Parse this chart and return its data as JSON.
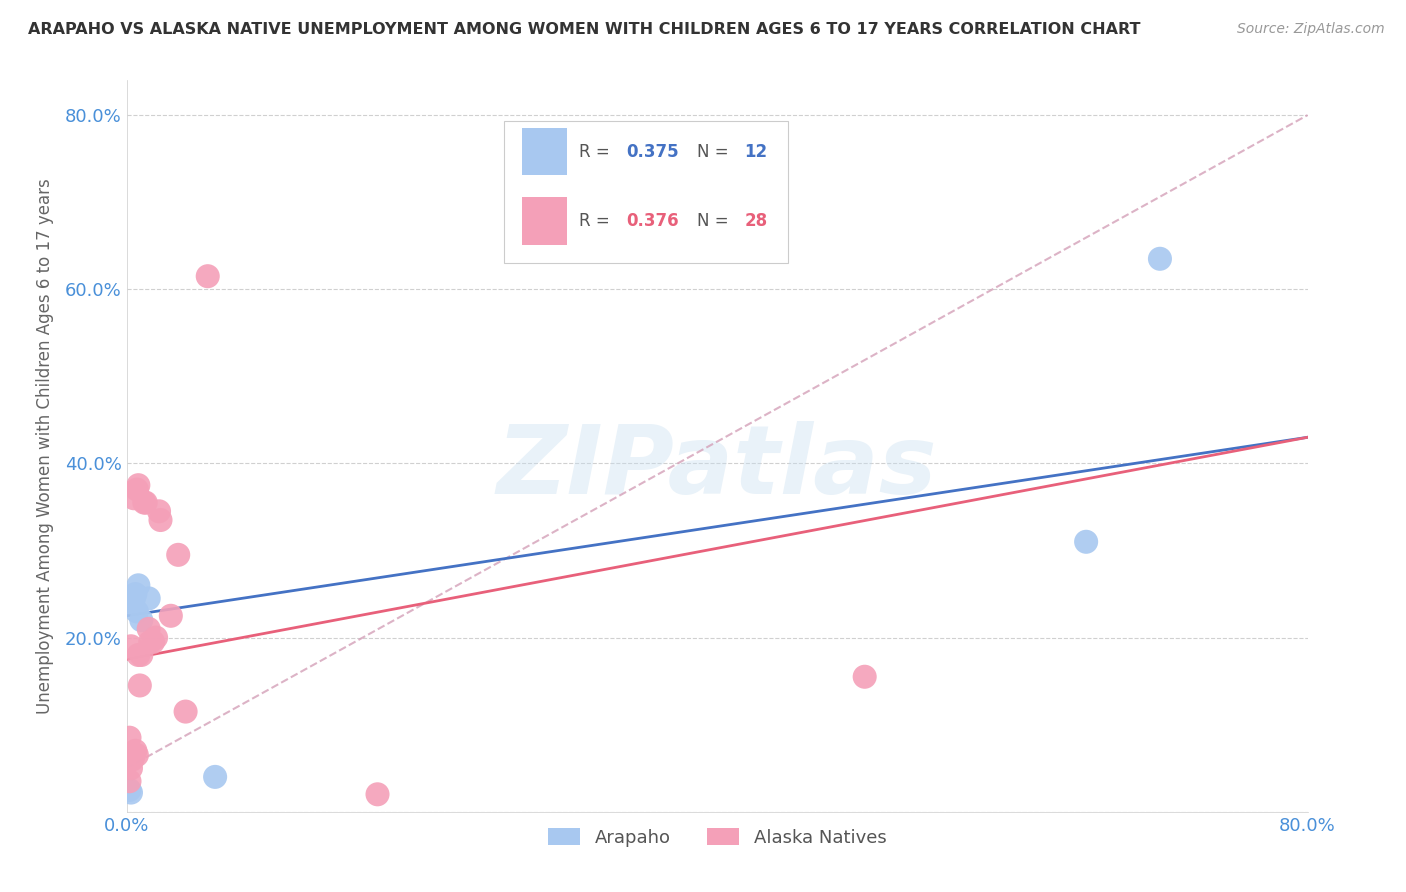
{
  "title": "ARAPAHO VS ALASKA NATIVE UNEMPLOYMENT AMONG WOMEN WITH CHILDREN AGES 6 TO 17 YEARS CORRELATION CHART",
  "source": "Source: ZipAtlas.com",
  "ylabel": "Unemployment Among Women with Children Ages 6 to 17 years",
  "xlim": [
    0,
    0.8
  ],
  "ylim": [
    0,
    0.84
  ],
  "watermark": "ZIPatlas",
  "arapaho_color": "#a8c8f0",
  "alaska_color": "#f4a0b8",
  "arapaho_line_color": "#4472c4",
  "alaska_line_color": "#e8607a",
  "alaska_dash_color": "#d4a0b8",
  "arapaho_x": [
    0.002,
    0.003,
    0.004,
    0.005,
    0.006,
    0.007,
    0.008,
    0.01,
    0.015,
    0.06,
    0.65,
    0.7
  ],
  "arapaho_y": [
    0.025,
    0.022,
    0.24,
    0.245,
    0.25,
    0.23,
    0.26,
    0.22,
    0.245,
    0.04,
    0.31,
    0.635
  ],
  "alaska_x": [
    0.002,
    0.003,
    0.004,
    0.005,
    0.006,
    0.007,
    0.007,
    0.008,
    0.008,
    0.009,
    0.01,
    0.012,
    0.013,
    0.015,
    0.016,
    0.018,
    0.02,
    0.022,
    0.023,
    0.03,
    0.035,
    0.04,
    0.055,
    0.5,
    0.17,
    0.002,
    0.003,
    0.005
  ],
  "alaska_y": [
    0.035,
    0.05,
    0.06,
    0.065,
    0.07,
    0.065,
    0.37,
    0.375,
    0.18,
    0.145,
    0.18,
    0.355,
    0.355,
    0.21,
    0.195,
    0.195,
    0.2,
    0.345,
    0.335,
    0.225,
    0.295,
    0.115,
    0.615,
    0.155,
    0.02,
    0.085,
    0.19,
    0.36
  ],
  "background_color": "#ffffff",
  "grid_color": "#d0d0d0"
}
